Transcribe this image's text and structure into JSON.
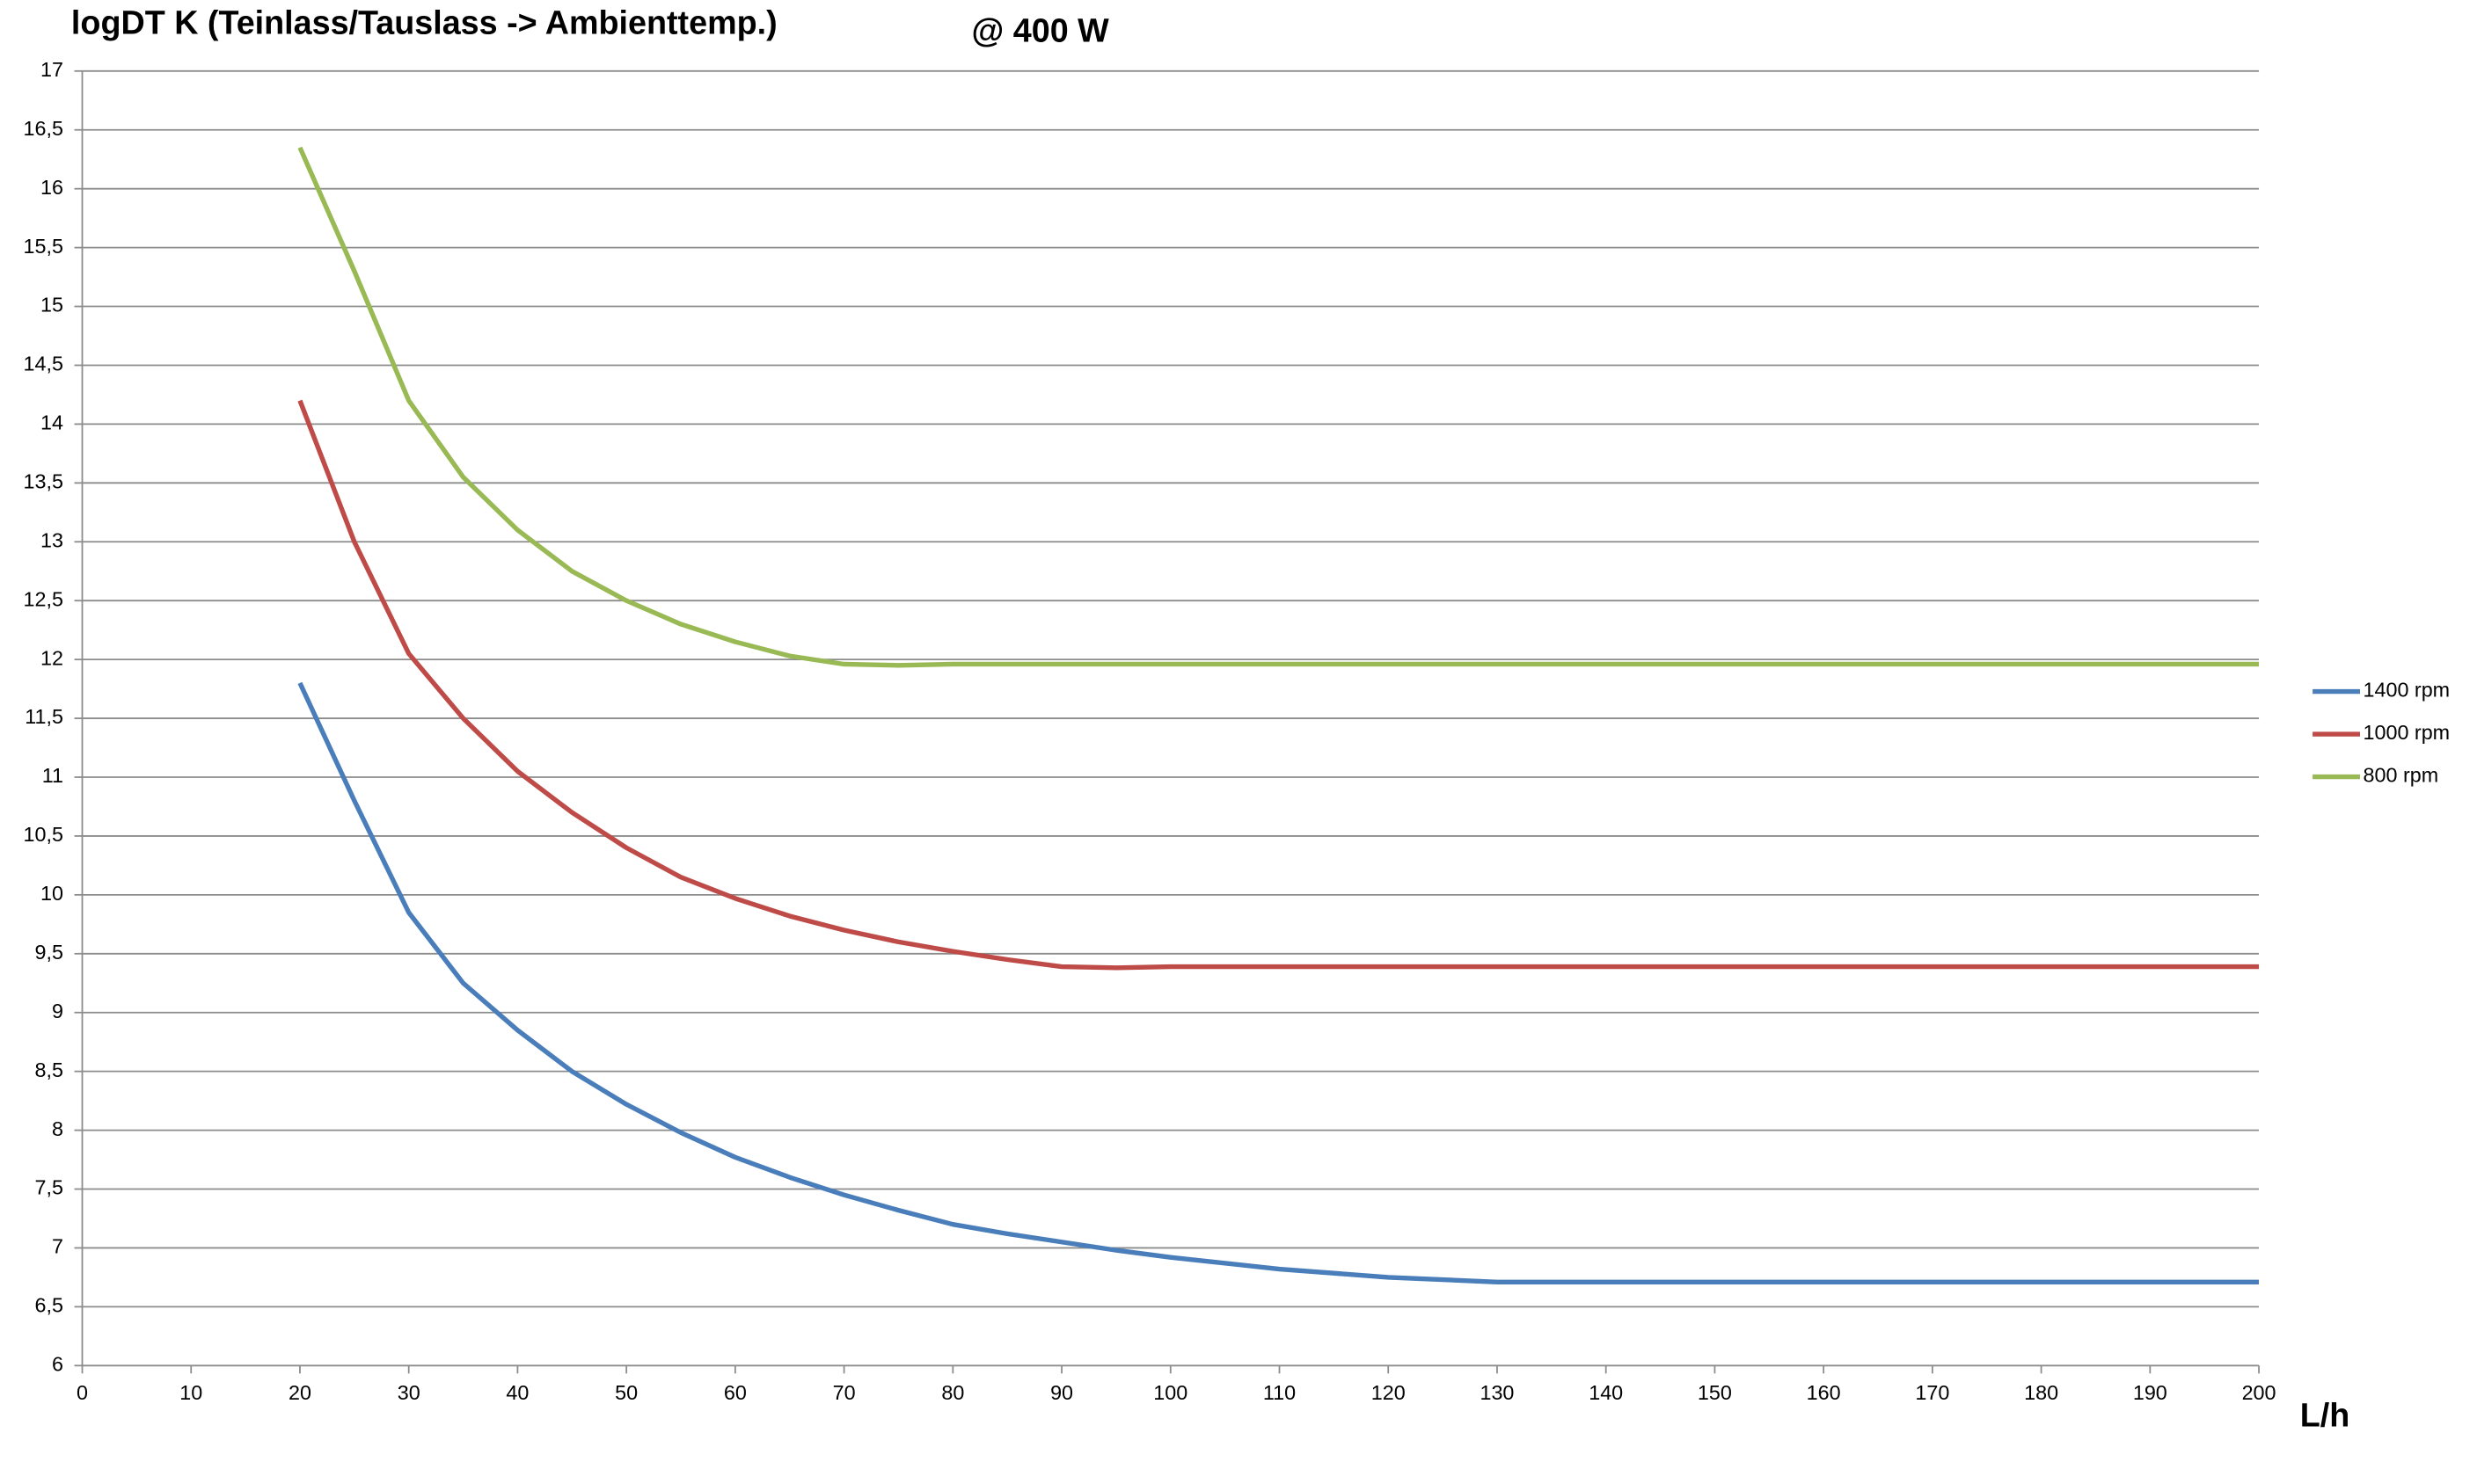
{
  "chart_data": {
    "type": "line",
    "title": "logDT K (Teinlass/Tauslass -> Ambienttemp.)",
    "subtitle": "@ 400 W",
    "x_label": "L/h",
    "x": [
      20,
      25,
      30,
      35,
      40,
      45,
      50,
      55,
      60,
      65,
      70,
      75,
      80,
      85,
      90,
      95,
      100,
      110,
      120,
      130,
      140,
      150,
      160,
      170,
      180,
      190,
      200
    ],
    "series": [
      {
        "name": "1400 rpm",
        "color": "#4a7ebb",
        "values": [
          11.8,
          10.8,
          9.85,
          9.25,
          8.85,
          8.5,
          8.22,
          7.98,
          7.77,
          7.6,
          7.45,
          7.32,
          7.2,
          7.12,
          7.05,
          6.98,
          6.92,
          6.82,
          6.75,
          6.71,
          6.71,
          6.71,
          6.71,
          6.71,
          6.71,
          6.71,
          6.71
        ]
      },
      {
        "name": "1000 rpm",
        "color": "#be4b48",
        "values": [
          14.2,
          13.0,
          12.05,
          11.5,
          11.05,
          10.7,
          10.4,
          10.15,
          9.97,
          9.82,
          9.7,
          9.6,
          9.52,
          9.45,
          9.39,
          9.38,
          9.39,
          9.39,
          9.39,
          9.39,
          9.39,
          9.39,
          9.39,
          9.39,
          9.39,
          9.39,
          9.39
        ]
      },
      {
        "name": "800 rpm",
        "color": "#98b954",
        "values": [
          16.35,
          15.3,
          14.2,
          13.55,
          13.1,
          12.75,
          12.5,
          12.3,
          12.15,
          12.03,
          11.96,
          11.95,
          11.96,
          11.96,
          11.96,
          11.96,
          11.96,
          11.96,
          11.96,
          11.96,
          11.96,
          11.96,
          11.96,
          11.96,
          11.96,
          11.96,
          11.96
        ]
      }
    ],
    "xlim": [
      0,
      200
    ],
    "xticks": [
      0,
      10,
      20,
      30,
      40,
      50,
      60,
      70,
      80,
      90,
      100,
      110,
      120,
      130,
      140,
      150,
      160,
      170,
      180,
      190,
      200
    ],
    "ylim": [
      6,
      17
    ],
    "yticks": [
      6,
      {
        "value": 6.5,
        "label": "6,5"
      },
      7,
      {
        "value": 7.5,
        "label": "7,5"
      },
      8,
      {
        "value": 8.5,
        "label": "8,5"
      },
      9,
      {
        "value": 9.5,
        "label": "9,5"
      },
      10,
      {
        "value": 10.5,
        "label": "10,5"
      },
      11,
      {
        "value": 11.5,
        "label": "11,5"
      },
      12,
      {
        "value": 12.5,
        "label": "12,5"
      },
      13,
      {
        "value": 13.5,
        "label": "13,5"
      },
      14,
      {
        "value": 14.5,
        "label": "14,5"
      },
      15,
      {
        "value": 15.5,
        "label": "15,5"
      },
      16,
      {
        "value": 16.5,
        "label": "16,5"
      },
      17
    ],
    "grid": true,
    "legend": "right"
  }
}
